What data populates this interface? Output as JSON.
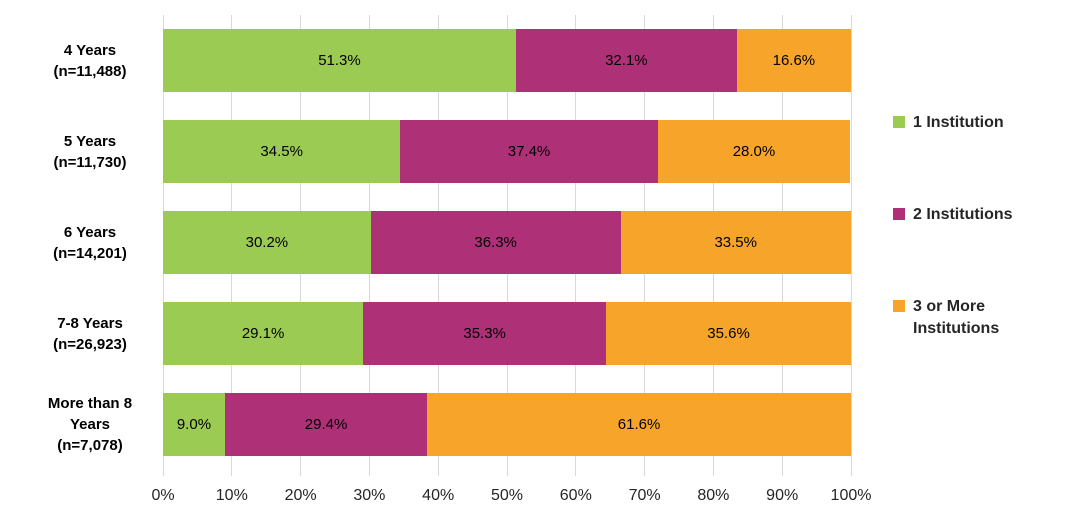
{
  "chart_data": {
    "type": "bar",
    "orientation": "horizontal",
    "stacked": true,
    "title": "",
    "xlabel": "",
    "ylabel": "",
    "categories": [
      "4 Years (n=11,488)",
      "5 Years (n=11,730)",
      "6 Years (n=14,201)",
      "7-8 Years (n=26,923)",
      "More than 8 Years (n=7,078)"
    ],
    "category_label_lines": [
      [
        "4 Years",
        "(n=11,488)"
      ],
      [
        "5 Years",
        "(n=11,730)"
      ],
      [
        "6 Years",
        "(n=14,201)"
      ],
      [
        "7-8 Years",
        "(n=26,923)"
      ],
      [
        "More than 8",
        "Years",
        "(n=7,078)"
      ]
    ],
    "series": [
      {
        "name": "1 Institution",
        "color": "#9CCB53",
        "values": [
          51.3,
          34.5,
          30.2,
          29.1,
          9.0
        ]
      },
      {
        "name": "2 Institutions",
        "color": "#AE3178",
        "values": [
          32.1,
          37.4,
          36.3,
          35.3,
          29.4
        ]
      },
      {
        "name": "3 or More Institutions",
        "color": "#F7A42A",
        "values": [
          16.6,
          28.0,
          33.5,
          35.6,
          61.6
        ]
      }
    ],
    "x_ticks": [
      "0%",
      "10%",
      "20%",
      "30%",
      "40%",
      "50%",
      "60%",
      "70%",
      "80%",
      "90%",
      "100%"
    ],
    "xlim": [
      0,
      100
    ],
    "grid": true,
    "gridline_color": "#D9D9D9",
    "legend_position": "right",
    "value_label_format": "one-decimal-percent-inside-segment"
  }
}
